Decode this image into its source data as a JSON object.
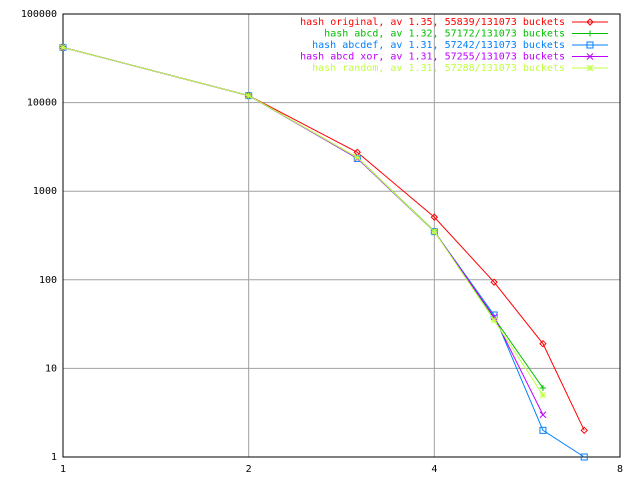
{
  "chart_data": {
    "type": "line",
    "xlog": true,
    "ylog": true,
    "grid": true,
    "legend": "top right",
    "x": [
      1,
      2,
      3,
      4,
      5,
      6,
      7
    ],
    "xlim": [
      1,
      8
    ],
    "xticks": [
      1,
      2,
      4,
      8
    ],
    "ylim": [
      1,
      100000
    ],
    "yticks": [
      1,
      10,
      100,
      1000,
      10000,
      100000
    ],
    "series": [
      {
        "name": "hash original, av 1.35, 55839/131073 buckets",
        "color": "#ff0000",
        "values": [
          42000,
          12000,
          2750,
          510,
          94,
          19,
          2
        ]
      },
      {
        "name": "hash abcd, av 1.32, 57172/131073 buckets",
        "color": "#00c000",
        "values": [
          42000,
          12000,
          2400,
          355,
          37,
          6,
          null
        ]
      },
      {
        "name": "hash abcdef, av 1.31, 57242/131073 buckets",
        "color": "#0080ff",
        "values": [
          42000,
          12000,
          2350,
          350,
          40,
          2,
          1
        ]
      },
      {
        "name": "hash abcd xor, av 1.31, 57255/131073 buckets",
        "color": "#c000ff",
        "values": [
          42000,
          12000,
          2350,
          350,
          38,
          3,
          null
        ]
      },
      {
        "name": "hash random, av 1.31, 57288/131073 buckets",
        "color": "#c0ff40",
        "values": [
          42000,
          12000,
          2400,
          350,
          35,
          5,
          null
        ]
      }
    ]
  }
}
